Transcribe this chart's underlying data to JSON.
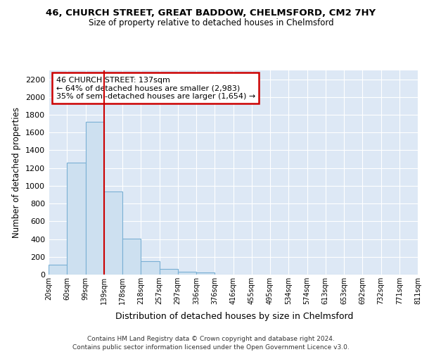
{
  "title": "46, CHURCH STREET, GREAT BADDOW, CHELMSFORD, CM2 7HY",
  "subtitle": "Size of property relative to detached houses in Chelmsford",
  "xlabel": "Distribution of detached houses by size in Chelmsford",
  "ylabel": "Number of detached properties",
  "bar_values": [
    110,
    1265,
    1720,
    935,
    405,
    150,
    65,
    35,
    25,
    0,
    0,
    0,
    0,
    0,
    0,
    0,
    0,
    0,
    0,
    0
  ],
  "bar_labels": [
    "20sqm",
    "60sqm",
    "99sqm",
    "139sqm",
    "178sqm",
    "218sqm",
    "257sqm",
    "297sqm",
    "336sqm",
    "376sqm",
    "416sqm",
    "455sqm",
    "495sqm",
    "534sqm",
    "574sqm",
    "613sqm",
    "653sqm",
    "692sqm",
    "732sqm",
    "771sqm",
    "811sqm"
  ],
  "bar_color": "#cde0f0",
  "bar_edge_color": "#7ab0d4",
  "ylim_max": 2300,
  "yticks": [
    0,
    200,
    400,
    600,
    800,
    1000,
    1200,
    1400,
    1600,
    1800,
    2000,
    2200
  ],
  "property_line_x": 3.0,
  "annotation_text": "46 CHURCH STREET: 137sqm\n← 64% of detached houses are smaller (2,983)\n35% of semi-detached houses are larger (1,654) →",
  "annotation_box_facecolor": "#ffffff",
  "annotation_border_color": "#cc0000",
  "footer_line1": "Contains HM Land Registry data © Crown copyright and database right 2024.",
  "footer_line2": "Contains public sector information licensed under the Open Government Licence v3.0.",
  "fig_facecolor": "#ffffff",
  "plot_facecolor": "#dde8f5",
  "grid_color": "#ffffff",
  "vline_color": "#cc0000"
}
